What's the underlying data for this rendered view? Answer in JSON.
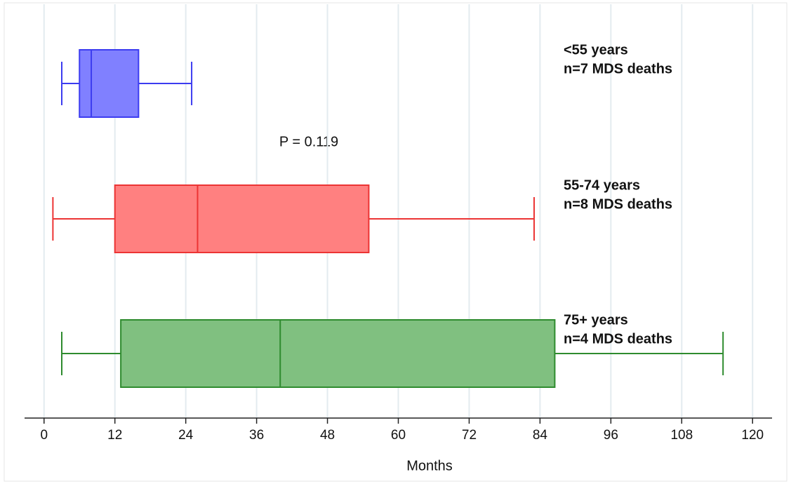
{
  "chart_data": {
    "type": "boxplot",
    "orientation": "horizontal",
    "x_label": "Months",
    "annotation": "P = 0.119",
    "xlim": [
      -3.3,
      123.3
    ],
    "xticks": [
      0,
      12,
      24,
      36,
      48,
      60,
      72,
      84,
      96,
      108,
      120
    ],
    "grid": true,
    "groups": [
      {
        "label": "<55 years",
        "sublabel": "n=7 MDS deaths",
        "color": "#8080ff",
        "edge": "#3c3cf0",
        "whisker_low": 3,
        "q1": 6,
        "median": 8,
        "q3": 16,
        "whisker_high": 25
      },
      {
        "label": "55-74 years",
        "sublabel": "n=8 MDS deaths",
        "color": "#ff8080",
        "edge": "#ec3434",
        "whisker_low": 1.5,
        "q1": 12,
        "median": 26,
        "q3": 55,
        "whisker_high": 83
      },
      {
        "label": "75+ years",
        "sublabel": "n=4 MDS deaths",
        "color": "#80c080",
        "edge": "#2e8b2e",
        "whisker_low": 3,
        "q1": 13,
        "median": 40,
        "q3": 86.5,
        "whisker_high": 115
      }
    ]
  }
}
